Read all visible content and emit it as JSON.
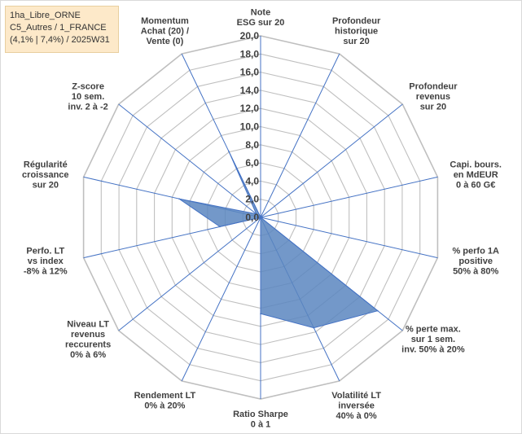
{
  "info_box": {
    "line1": "1ha_Libre_ORNE",
    "line2": "C5_Autres / 1_FRANCE",
    "line3": "(4,1% | 7,4%) / 2025W31"
  },
  "colors": {
    "series_fill": "#5b86bf",
    "series_stroke": "#4472c4",
    "grid": "#bfbfbf",
    "spoke": "#4472c4",
    "info_bg": "#fde9c9"
  },
  "chart_data": {
    "type": "radar",
    "title": "",
    "rlim": [
      0,
      20
    ],
    "rticks": [
      0,
      2,
      4,
      6,
      8,
      10,
      12,
      14,
      16,
      18,
      20
    ],
    "rtick_labels": [
      "0,0",
      "2,0",
      "4,0",
      "6,0",
      "8,0",
      "10,0",
      "12,0",
      "14,0",
      "16,0",
      "18,0",
      "20,0"
    ],
    "categories": [
      [
        "Note",
        "ESG sur 20"
      ],
      [
        "Profondeur",
        "historique",
        "sur 20"
      ],
      [
        "Profondeur",
        "revenus",
        "sur 20"
      ],
      [
        "Capi. bours.",
        "en MdEUR",
        "0 à 60 G€"
      ],
      [
        "% perfo 1A",
        "positive",
        "50% à 80%"
      ],
      [
        "% perte max.",
        "sur 1 sem.",
        "inv. 50% à 20%"
      ],
      [
        "Volatilité LT",
        "inversée",
        "40% à 0%"
      ],
      [
        "Ratio Sharpe",
        "0 à 1"
      ],
      [
        "Rendement LT",
        "0% à 20%"
      ],
      [
        "Niveau LT",
        "revenus",
        "reccurents",
        "0% à 6%"
      ],
      [
        "Perfo. LT",
        "vs index",
        "-8% à 12%"
      ],
      [
        "Régularité",
        "croissance",
        "sur 20"
      ],
      [
        "Z-score",
        "10 sem.",
        "inv. 2 à -2"
      ],
      [
        "Momentum",
        "Achat (20) /",
        "Vente (0)"
      ]
    ],
    "series": [
      {
        "values": [
          0,
          0,
          0,
          0,
          0,
          16.5,
          13.5,
          10.6,
          0,
          0,
          4.6,
          9.2,
          0.6,
          8.1
        ]
      }
    ],
    "grid": true,
    "legend": "none"
  }
}
